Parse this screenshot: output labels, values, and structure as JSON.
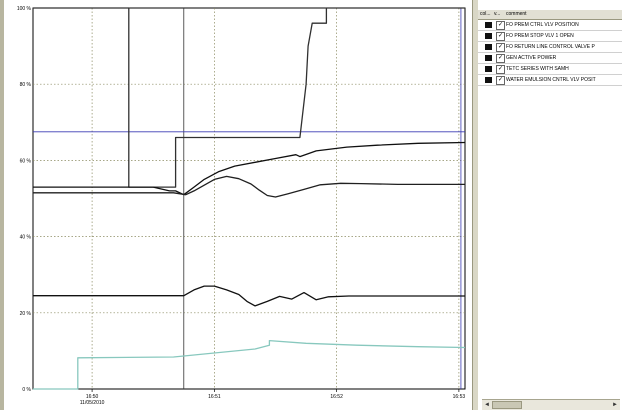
{
  "chart_data": {
    "type": "line",
    "title": "",
    "xlabel": "",
    "ylabel": "",
    "x_range": [
      "16:49:31",
      "16:53:03"
    ],
    "x_ticks": [
      "16:50",
      "16:51",
      "16:52",
      "16:53"
    ],
    "x_date_label": "11/05/2010",
    "y_ticks": [
      "0 %",
      "20 %",
      "40 %",
      "60 %",
      "80 %",
      "100 %"
    ],
    "ylim": [
      0,
      100
    ],
    "grid": true,
    "cursors": [
      {
        "type": "vertical",
        "x": "16:50:45",
        "color": "#333333"
      },
      {
        "type": "vertical",
        "x": "16:53:01",
        "color": "#3a3ab4"
      },
      {
        "type": "horizontal",
        "y": 67.5,
        "color": "#3a3ab4"
      }
    ],
    "series": [
      {
        "name": "FO PREM STOP VLV 1 OPEN",
        "color": "#303030",
        "points": [
          [
            "16:49:31",
            100
          ],
          [
            "16:50:18",
            100
          ],
          [
            "16:50:18",
            53
          ],
          [
            "16:50:41",
            53
          ],
          [
            "16:50:41",
            66
          ],
          [
            "16:51:42",
            66
          ],
          [
            "16:51:45",
            80
          ],
          [
            "16:51:46",
            90
          ],
          [
            "16:51:48",
            96
          ],
          [
            "16:51:55",
            96
          ],
          [
            "16:51:55",
            100
          ],
          [
            "16:53:03",
            100
          ]
        ]
      },
      {
        "name": "FO RETURN LINE  CONTROL VALVE P",
        "color": "#101010",
        "points": [
          [
            "16:49:31",
            53
          ],
          [
            "16:50:30",
            53
          ],
          [
            "16:50:38",
            52
          ],
          [
            "16:50:41",
            52
          ],
          [
            "16:50:45",
            51
          ],
          [
            "16:50:50",
            53
          ],
          [
            "16:50:55",
            55
          ],
          [
            "16:51:02",
            57
          ],
          [
            "16:51:10",
            58.5
          ],
          [
            "16:51:20",
            59.5
          ],
          [
            "16:51:30",
            60.5
          ],
          [
            "16:51:40",
            61.5
          ],
          [
            "16:51:42",
            61
          ],
          [
            "16:51:50",
            62.5
          ],
          [
            "16:52:05",
            63.5
          ],
          [
            "16:52:20",
            64
          ],
          [
            "16:52:40",
            64.5
          ],
          [
            "16:53:03",
            64.7
          ]
        ]
      },
      {
        "name": "GEN ACTIVE POWER",
        "color": "#202020",
        "points": [
          [
            "16:49:31",
            51.5
          ],
          [
            "16:50:40",
            51.5
          ],
          [
            "16:50:46",
            51
          ],
          [
            "16:50:50",
            52
          ],
          [
            "16:50:55",
            53.5
          ],
          [
            "16:51:00",
            55
          ],
          [
            "16:51:06",
            55.8
          ],
          [
            "16:51:12",
            55.2
          ],
          [
            "16:51:18",
            53.8
          ],
          [
            "16:51:22",
            52.2
          ],
          [
            "16:51:26",
            50.8
          ],
          [
            "16:51:30",
            50.4
          ],
          [
            "16:51:36",
            51.2
          ],
          [
            "16:51:44",
            52.4
          ],
          [
            "16:51:52",
            53.6
          ],
          [
            "16:52:02",
            54
          ],
          [
            "16:52:12",
            53.9
          ],
          [
            "16:52:30",
            53.7
          ],
          [
            "16:53:03",
            53.7
          ]
        ]
      },
      {
        "name": "TETC SERIES WITH SAMH",
        "color": "#111111",
        "points": [
          [
            "16:49:31",
            24.5
          ],
          [
            "16:50:45",
            24.5
          ],
          [
            "16:50:50",
            26
          ],
          [
            "16:50:55",
            27
          ],
          [
            "16:51:00",
            27
          ],
          [
            "16:51:06",
            26
          ],
          [
            "16:51:12",
            24.8
          ],
          [
            "16:51:16",
            23
          ],
          [
            "16:51:20",
            21.8
          ],
          [
            "16:51:26",
            23
          ],
          [
            "16:51:32",
            24.3
          ],
          [
            "16:51:38",
            23.6
          ],
          [
            "16:51:44",
            25.3
          ],
          [
            "16:51:50",
            23.4
          ],
          [
            "16:51:56",
            24.2
          ],
          [
            "16:52:06",
            24.4
          ],
          [
            "16:53:03",
            24.4
          ]
        ]
      },
      {
        "name": "WATER EMULSION CNTRL VLV POSIT",
        "color": "#88c8be",
        "points": [
          [
            "16:49:31",
            0
          ],
          [
            "16:49:53",
            0
          ],
          [
            "16:49:53",
            8.2
          ],
          [
            "16:50:40",
            8.4
          ],
          [
            "16:51:20",
            10.5
          ],
          [
            "16:51:27",
            11.5
          ],
          [
            "16:51:27",
            12.7
          ],
          [
            "16:51:45",
            12
          ],
          [
            "16:52:10",
            11.5
          ],
          [
            "16:52:40",
            11.1
          ],
          [
            "16:53:03",
            10.9
          ]
        ]
      }
    ]
  },
  "legend": {
    "header_col": "col...",
    "header_v": "v...",
    "header_comment": "comment",
    "rows": [
      {
        "label": "FO PREM CTRL VLV POSITION",
        "checked": "✓"
      },
      {
        "label": "FO PREM STOP VLV 1 OPEN",
        "checked": "✓"
      },
      {
        "label": "FO RETURN LINE  CONTROL VALVE P",
        "checked": "✓"
      },
      {
        "label": "GEN ACTIVE POWER",
        "checked": "✓"
      },
      {
        "label": "TETC SERIES WITH SAMH",
        "checked": "✓"
      },
      {
        "label": "WATER EMULSION CNTRL VLV POSIT",
        "checked": "✓"
      }
    ]
  },
  "scrollbar": {
    "left_arrow": "◄",
    "right_arrow": "►"
  }
}
